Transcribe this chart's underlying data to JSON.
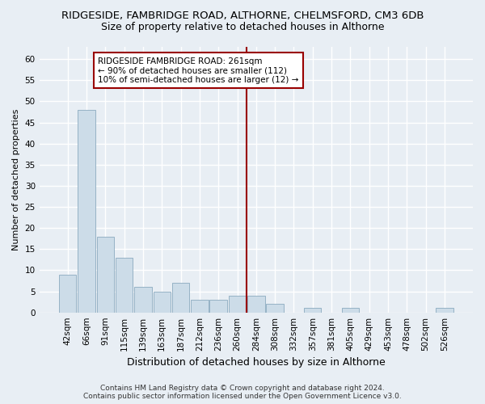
{
  "title": "RIDGESIDE, FAMBRIDGE ROAD, ALTHORNE, CHELMSFORD, CM3 6DB",
  "subtitle": "Size of property relative to detached houses in Althorne",
  "xlabel": "Distribution of detached houses by size in Althorne",
  "ylabel": "Number of detached properties",
  "footer_line1": "Contains HM Land Registry data © Crown copyright and database right 2024.",
  "footer_line2": "Contains public sector information licensed under the Open Government Licence v3.0.",
  "bin_labels": [
    "42sqm",
    "66sqm",
    "91sqm",
    "115sqm",
    "139sqm",
    "163sqm",
    "187sqm",
    "212sqm",
    "236sqm",
    "260sqm",
    "284sqm",
    "308sqm",
    "332sqm",
    "357sqm",
    "381sqm",
    "405sqm",
    "429sqm",
    "453sqm",
    "478sqm",
    "502sqm",
    "526sqm"
  ],
  "bar_values": [
    9,
    48,
    18,
    13,
    6,
    5,
    7,
    3,
    3,
    4,
    4,
    2,
    0,
    1,
    0,
    1,
    0,
    0,
    0,
    0,
    1
  ],
  "bar_color": "#ccdce8",
  "bar_edge_color": "#8baabf",
  "vline_color": "#990000",
  "annotation_text": "RIDGESIDE FAMBRIDGE ROAD: 261sqm\n← 90% of detached houses are smaller (112)\n10% of semi-detached houses are larger (12) →",
  "annotation_box_color": "white",
  "annotation_box_edge_color": "#990000",
  "ylim": [
    0,
    63
  ],
  "yticks": [
    0,
    5,
    10,
    15,
    20,
    25,
    30,
    35,
    40,
    45,
    50,
    55,
    60
  ],
  "background_color": "#e8eef4",
  "grid_color": "white",
  "title_fontsize": 9.5,
  "subtitle_fontsize": 9,
  "xlabel_fontsize": 9,
  "ylabel_fontsize": 8,
  "tick_fontsize": 7.5,
  "annotation_fontsize": 7.5,
  "footer_fontsize": 6.5
}
